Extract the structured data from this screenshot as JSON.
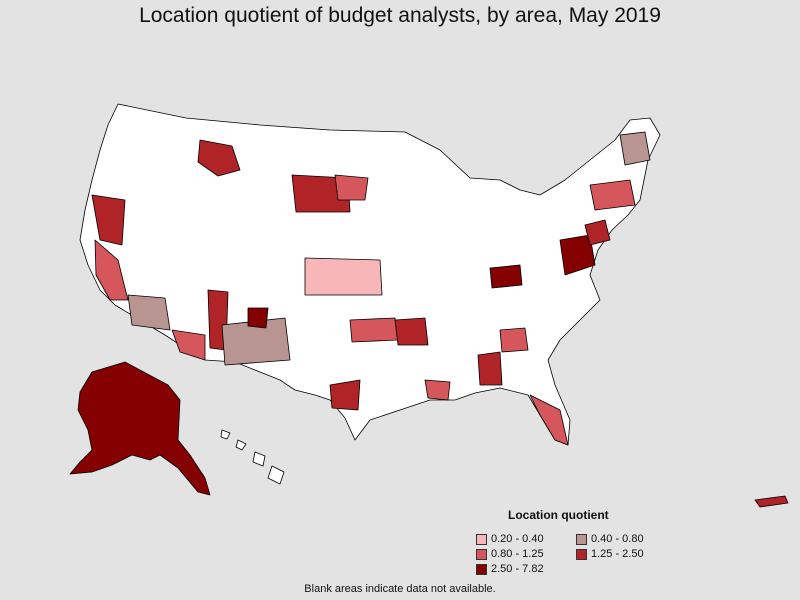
{
  "title": "Location quotient of budget analysts, by area, May 2019",
  "legend": {
    "title": "Location quotient",
    "items": [
      {
        "label": "0.20 - 0.40",
        "color": "#f8b6b8"
      },
      {
        "label": "0.40 - 0.80",
        "color": "#b99592"
      },
      {
        "label": "0.80 - 1.25",
        "color": "#d5575c"
      },
      {
        "label": "1.25 - 2.50",
        "color": "#b02327"
      },
      {
        "label": "2.50 - 7.82",
        "color": "#850000"
      }
    ]
  },
  "footnote": "Blank areas indicate data not available.",
  "colors": {
    "background": "#e3e3e3",
    "blank_area": "#ffffff",
    "boundary": "#000000"
  }
}
